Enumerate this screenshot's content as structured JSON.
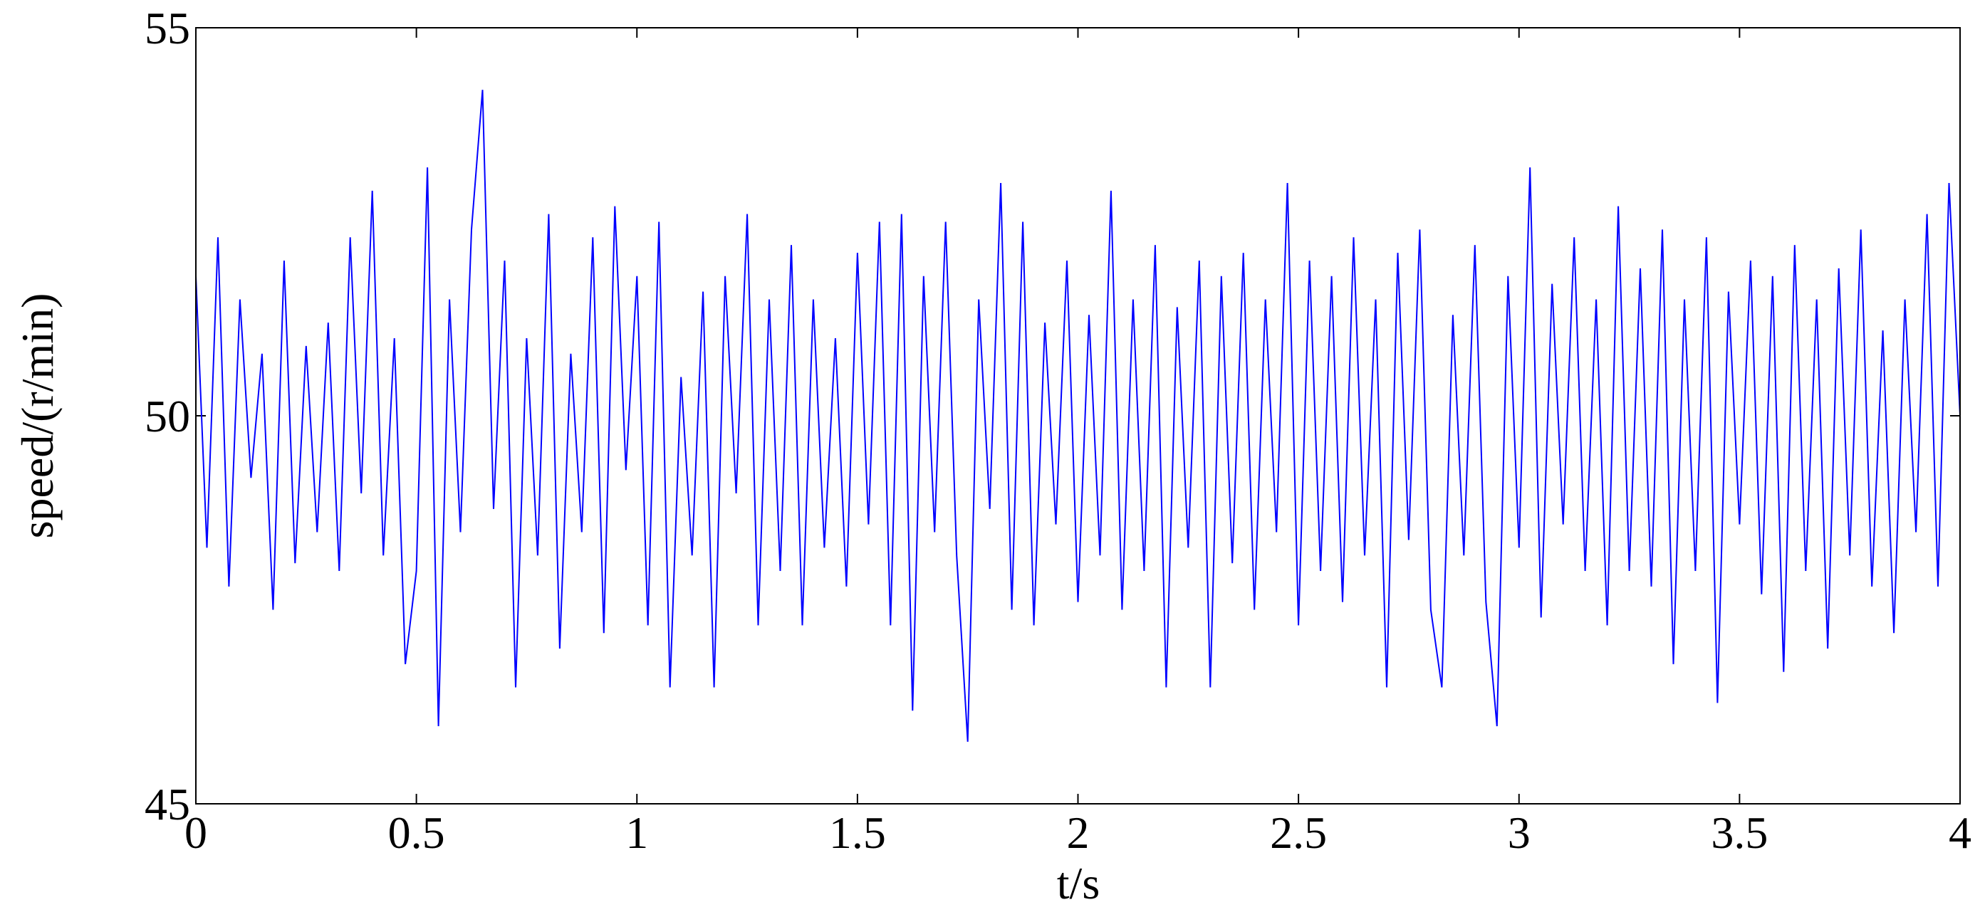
{
  "chart_data": {
    "type": "line",
    "xlabel": "t/s",
    "ylabel": "speed/(r/min)",
    "xlim": [
      0,
      4
    ],
    "ylim": [
      45,
      55
    ],
    "xticks": [
      0,
      0.5,
      1,
      1.5,
      2,
      2.5,
      3,
      3.5,
      4
    ],
    "yticks": [
      45,
      50,
      55
    ],
    "color": "#0000ff",
    "x": [
      0,
      0.025,
      0.05,
      0.075,
      0.1,
      0.125,
      0.15,
      0.175,
      0.2,
      0.225,
      0.25,
      0.275,
      0.3,
      0.325,
      0.35,
      0.375,
      0.4,
      0.425,
      0.45,
      0.475,
      0.5,
      0.525,
      0.55,
      0.575,
      0.6,
      0.625,
      0.65,
      0.675,
      0.7,
      0.725,
      0.75,
      0.775,
      0.8,
      0.825,
      0.85,
      0.875,
      0.9,
      0.925,
      0.95,
      0.975,
      1,
      1.025,
      1.05,
      1.075,
      1.1,
      1.125,
      1.15,
      1.175,
      1.2,
      1.225,
      1.25,
      1.275,
      1.3,
      1.325,
      1.35,
      1.375,
      1.4,
      1.425,
      1.45,
      1.475,
      1.5,
      1.525,
      1.55,
      1.575,
      1.6,
      1.625,
      1.65,
      1.675,
      1.7,
      1.725,
      1.75,
      1.775,
      1.8,
      1.825,
      1.85,
      1.875,
      1.9,
      1.925,
      1.95,
      1.975,
      2,
      2.025,
      2.05,
      2.075,
      2.1,
      2.125,
      2.15,
      2.175,
      2.2,
      2.225,
      2.25,
      2.275,
      2.3,
      2.325,
      2.35,
      2.375,
      2.4,
      2.425,
      2.45,
      2.475,
      2.5,
      2.525,
      2.55,
      2.575,
      2.6,
      2.625,
      2.65,
      2.675,
      2.7,
      2.725,
      2.75,
      2.775,
      2.8,
      2.825,
      2.85,
      2.875,
      2.9,
      2.925,
      2.95,
      2.975,
      3,
      3.025,
      3.05,
      3.075,
      3.1,
      3.125,
      3.15,
      3.175,
      3.2,
      3.225,
      3.25,
      3.275,
      3.3,
      3.325,
      3.35,
      3.375,
      3.4,
      3.425,
      3.45,
      3.475,
      3.5,
      3.525,
      3.55,
      3.575,
      3.6,
      3.625,
      3.65,
      3.675,
      3.7,
      3.725,
      3.75,
      3.775,
      3.8,
      3.825,
      3.85,
      3.875,
      3.9,
      3.925,
      3.95,
      3.975,
      4
    ],
    "values": [
      51.8,
      48.3,
      52.3,
      47.8,
      51.5,
      49.2,
      50.8,
      47.5,
      52.0,
      48.1,
      50.9,
      48.5,
      51.2,
      48.0,
      52.3,
      49.0,
      52.9,
      48.2,
      51.0,
      46.8,
      48.0,
      53.2,
      46.0,
      51.5,
      48.5,
      52.4,
      54.2,
      48.8,
      52.0,
      46.5,
      51.0,
      48.2,
      52.6,
      47.0,
      50.8,
      48.5,
      52.3,
      47.2,
      52.7,
      49.3,
      51.8,
      47.3,
      52.5,
      46.5,
      50.5,
      48.2,
      51.6,
      46.5,
      51.8,
      49.0,
      52.6,
      47.3,
      51.5,
      48.0,
      52.2,
      47.3,
      51.5,
      48.3,
      51.0,
      47.8,
      52.1,
      48.6,
      52.5,
      47.3,
      52.6,
      46.2,
      51.8,
      48.5,
      52.5,
      48.2,
      45.8,
      51.5,
      48.8,
      53.0,
      47.5,
      52.5,
      47.3,
      51.2,
      48.6,
      52.0,
      47.6,
      51.3,
      48.2,
      52.9,
      47.5,
      51.5,
      48.0,
      52.2,
      46.5,
      51.4,
      48.3,
      52.0,
      46.5,
      51.8,
      48.1,
      52.1,
      47.5,
      51.5,
      48.5,
      53.0,
      47.3,
      52.0,
      48.0,
      51.8,
      47.6,
      52.3,
      48.2,
      51.5,
      46.5,
      52.1,
      48.4,
      52.4,
      47.5,
      46.5,
      51.3,
      48.2,
      52.2,
      47.6,
      46.0,
      51.8,
      48.3,
      53.2,
      47.4,
      51.7,
      48.6,
      52.3,
      48.0,
      51.5,
      47.3,
      52.7,
      48.0,
      51.9,
      47.8,
      52.4,
      46.8,
      51.5,
      48.0,
      52.3,
      46.3,
      51.6,
      48.6,
      52.0,
      47.7,
      51.8,
      46.7,
      52.2,
      48.0,
      51.5,
      47.0,
      51.9,
      48.2,
      52.4,
      47.8,
      51.1,
      47.2,
      51.5,
      48.5,
      52.6,
      47.8,
      53.0,
      50.0
    ]
  }
}
